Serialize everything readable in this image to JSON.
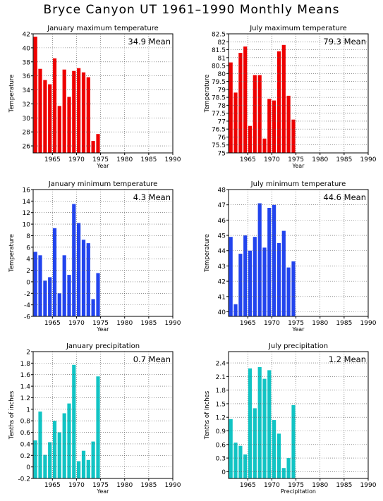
{
  "page": {
    "title": "Bryce Canyon UT  1961–1990 Monthly Means"
  },
  "chart_data": [
    {
      "id": "jan-max",
      "type": "bar",
      "title": "January maximum temperature",
      "ylabel": "Temperature",
      "xlabel": "Year",
      "mean_label": "34.9 Mean",
      "color": "#ee0000",
      "xlim": [
        1961,
        1990
      ],
      "ylim": [
        25,
        42
      ],
      "y_ticks": [
        42,
        40,
        38,
        36,
        34,
        32,
        30,
        28,
        26
      ],
      "x_ticks": [
        1965,
        1970,
        1975,
        1980,
        1985,
        1990
      ],
      "years": [
        1961,
        1962,
        1963,
        1964,
        1965,
        1966,
        1967,
        1968,
        1969,
        1970,
        1971,
        1972,
        1973,
        1974
      ],
      "values": [
        41.6,
        37.0,
        35.4,
        34.8,
        38.5,
        31.7,
        36.9,
        33.0,
        36.7,
        37.1,
        36.5,
        35.8,
        26.7,
        27.7
      ]
    },
    {
      "id": "jul-max",
      "type": "bar",
      "title": "July maximum temperature",
      "ylabel": "Temperature",
      "xlabel": "Year",
      "mean_label": "79.3 Mean",
      "color": "#ee0000",
      "xlim": [
        1961,
        1990
      ],
      "ylim": [
        75,
        82.5
      ],
      "y_ticks": [
        82.5,
        82,
        81.5,
        81,
        80.5,
        80,
        79.5,
        79,
        78.5,
        78,
        77.5,
        77,
        76.5,
        76,
        75.5,
        75
      ],
      "x_ticks": [
        1965,
        1970,
        1975,
        1980,
        1985,
        1990
      ],
      "years": [
        1961,
        1962,
        1963,
        1964,
        1965,
        1966,
        1967,
        1968,
        1969,
        1970,
        1971,
        1972,
        1973,
        1974
      ],
      "values": [
        80.7,
        78.8,
        81.3,
        81.7,
        76.7,
        79.9,
        79.9,
        75.9,
        78.4,
        78.3,
        81.4,
        81.8,
        78.6,
        77.1
      ]
    },
    {
      "id": "jan-min",
      "type": "bar",
      "title": "January minimum temperature",
      "ylabel": "Temperature",
      "xlabel": "Year",
      "mean_label": "4.3 Mean",
      "color": "#2244ee",
      "xlim": [
        1961,
        1990
      ],
      "ylim": [
        -6,
        16
      ],
      "y_ticks": [
        16,
        14,
        12,
        10,
        8,
        6,
        4,
        2,
        0,
        -2,
        -4,
        -6
      ],
      "x_ticks": [
        1965,
        1970,
        1975,
        1980,
        1985,
        1990
      ],
      "years": [
        1961,
        1962,
        1963,
        1964,
        1965,
        1966,
        1967,
        1968,
        1969,
        1970,
        1971,
        1972,
        1973,
        1974
      ],
      "values": [
        5.2,
        4.6,
        0.2,
        0.8,
        9.3,
        -2.0,
        4.6,
        1.2,
        13.5,
        10.2,
        7.3,
        6.7,
        -3.0,
        1.5
      ]
    },
    {
      "id": "jul-min",
      "type": "bar",
      "title": "July minimum temperature",
      "ylabel": "Temperature",
      "xlabel": "Year",
      "mean_label": "44.6 Mean",
      "color": "#2244ee",
      "xlim": [
        1961,
        1990
      ],
      "ylim": [
        39.7,
        48
      ],
      "y_ticks": [
        48,
        47,
        46,
        45,
        44,
        43,
        42,
        41,
        40
      ],
      "x_ticks": [
        1965,
        1970,
        1975,
        1980,
        1985,
        1990
      ],
      "years": [
        1961,
        1962,
        1963,
        1964,
        1965,
        1966,
        1967,
        1968,
        1969,
        1970,
        1971,
        1972,
        1973,
        1974
      ],
      "values": [
        44.9,
        40.5,
        43.8,
        45.0,
        44.0,
        44.9,
        47.1,
        44.2,
        46.8,
        47.0,
        44.5,
        45.3,
        42.9,
        43.3
      ]
    },
    {
      "id": "jan-precip",
      "type": "bar",
      "title": "January precipitation",
      "ylabel": "Tenths of inches",
      "xlabel": "Year",
      "mean_label": "0.7 Mean",
      "color": "#11c4c4",
      "xlim": [
        1961,
        1990
      ],
      "ylim": [
        -0.2,
        2
      ],
      "y_ticks": [
        2,
        1.8,
        1.6,
        1.4,
        1.2,
        1,
        0.8,
        0.6,
        0.4,
        0.2,
        0,
        -0.2
      ],
      "x_ticks": [
        1965,
        1970,
        1975,
        1980,
        1985,
        1990
      ],
      "years": [
        1961,
        1962,
        1963,
        1964,
        1965,
        1966,
        1967,
        1968,
        1969,
        1970,
        1971,
        1972,
        1973,
        1974
      ],
      "values": [
        0.46,
        0.96,
        0.21,
        0.43,
        0.8,
        0.6,
        0.93,
        1.1,
        1.77,
        0.1,
        0.28,
        0.12,
        0.44,
        1.57
      ]
    },
    {
      "id": "jul-precip",
      "type": "bar",
      "title": "July precipitation",
      "ylabel": "Tenths of inches",
      "xlabel": "Precipitation",
      "mean_label": "1.2 Mean",
      "color": "#11c4c4",
      "xlim": [
        1961,
        1990
      ],
      "ylim": [
        -0.15,
        2.65
      ],
      "y_ticks": [
        2.4,
        2.1,
        1.8,
        1.5,
        1.2,
        0.9,
        0.6,
        0.3,
        0
      ],
      "x_ticks": [
        1965,
        1970,
        1975,
        1980,
        1985,
        1990
      ],
      "years": [
        1961,
        1962,
        1963,
        1964,
        1965,
        1966,
        1967,
        1968,
        1969,
        1970,
        1971,
        1972,
        1973,
        1974
      ],
      "values": [
        1.16,
        0.64,
        0.57,
        0.38,
        2.28,
        1.4,
        2.31,
        2.05,
        2.24,
        1.14,
        0.84,
        0.08,
        0.3,
        1.47
      ]
    }
  ]
}
